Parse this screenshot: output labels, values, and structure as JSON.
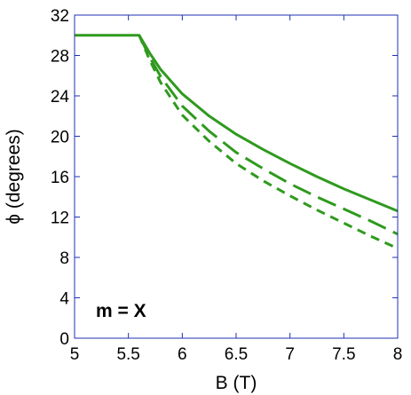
{
  "chart_data": {
    "type": "line",
    "title": "",
    "xlabel": "B (T)",
    "ylabel": "ϕ (degrees)",
    "xlim": [
      5,
      8
    ],
    "ylim": [
      0,
      32
    ],
    "xticks": [
      5,
      5.5,
      6,
      6.5,
      7,
      7.5,
      8
    ],
    "xtick_labels": [
      "5",
      "5.5",
      "6",
      "6.5",
      "7",
      "7.5",
      "8"
    ],
    "yticks": [
      0,
      4,
      8,
      12,
      16,
      20,
      24,
      28,
      32
    ],
    "ytick_labels": [
      "0",
      "4",
      "8",
      "12",
      "16",
      "20",
      "24",
      "28",
      "32"
    ],
    "grid": false,
    "legend": "none",
    "annotation": "m = X",
    "series_color": "#2f9a1e",
    "axis_color": "#1f2fb5",
    "series": [
      {
        "line_style": "solid",
        "x": [
          5.0,
          5.6,
          5.7,
          5.8,
          6.0,
          6.25,
          6.5,
          6.75,
          7.0,
          7.25,
          7.5,
          7.75,
          8.0
        ],
        "y": [
          30.0,
          30.0,
          28.2,
          26.6,
          24.2,
          22.0,
          20.2,
          18.7,
          17.3,
          16.0,
          14.8,
          13.7,
          12.6
        ]
      },
      {
        "line_style": "long-dash",
        "x": [
          5.6,
          5.7,
          5.8,
          6.0,
          6.25,
          6.5,
          6.75,
          7.0,
          7.25,
          7.5,
          7.75,
          8.0
        ],
        "y": [
          30.0,
          27.8,
          25.9,
          23.0,
          20.5,
          18.4,
          16.8,
          15.3,
          14.0,
          12.8,
          11.6,
          10.3
        ]
      },
      {
        "line_style": "short-dash",
        "x": [
          5.6,
          5.7,
          5.8,
          6.0,
          6.25,
          6.5,
          6.75,
          7.0,
          7.25,
          7.5,
          7.75,
          8.0
        ],
        "y": [
          30.0,
          27.5,
          25.3,
          22.1,
          19.5,
          17.3,
          15.6,
          14.1,
          12.7,
          11.4,
          10.1,
          8.9
        ]
      }
    ]
  }
}
